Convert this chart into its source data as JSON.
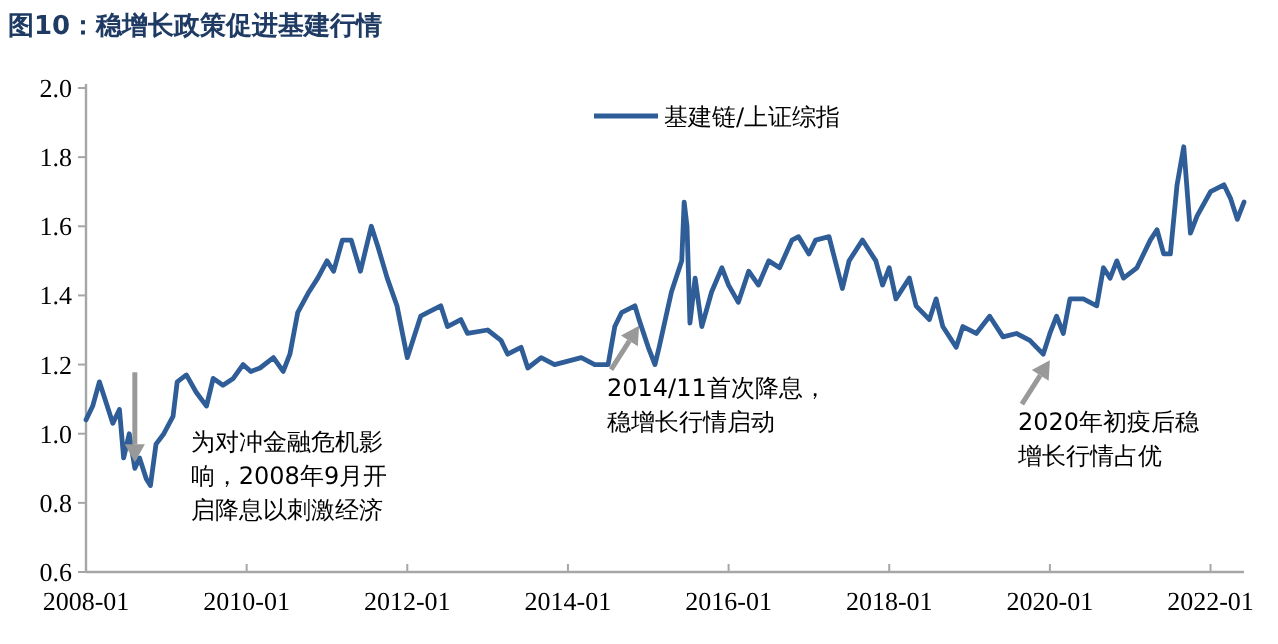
{
  "chart_data": {
    "type": "line",
    "title": "图10：稳增长政策促进基建行情",
    "legend": "top",
    "grid": false,
    "marker": "none",
    "line_style": "solid",
    "xlim": [
      "2008-01",
      "2022-06"
    ],
    "xticks": [
      "2008-01",
      "2010-01",
      "2012-01",
      "2014-01",
      "2016-01",
      "2018-01",
      "2020-01",
      "2022-01"
    ],
    "ylim": [
      0.6,
      2.0
    ],
    "yticks": [
      0.6,
      0.8,
      {
        "value": 1,
        "label": "1.0"
      },
      1.2,
      1.4,
      1.6,
      1.8,
      {
        "value": 2,
        "label": "2.0"
      }
    ],
    "annotations": [
      {
        "text": "为对冲金融危机影响，2008年9月开启降息以刺激经济",
        "x": "2008-08-10",
        "y": 0.9
      },
      {
        "text": "2014/11首次降息，稳增长行情启动",
        "x": "2014-11-20",
        "y": 1.33
      },
      {
        "text": "2020年初疫后稳增长行情占优",
        "x": "2020-01-01",
        "y": 1.23
      }
    ],
    "series": [
      {
        "name": "基建链/上证综指",
        "color": "#2f5d97",
        "x": [
          "2008-01-01",
          "2008-02-01",
          "2008-03-01",
          "2008-04-01",
          "2008-05-01",
          "2008-06-01",
          "2008-06-20",
          "2008-07-15",
          "2008-08-10",
          "2008-09-01",
          "2008-10-01",
          "2008-10-20",
          "2008-11-15",
          "2008-12-20",
          "2009-02-01",
          "2009-02-20",
          "2009-04-01",
          "2009-05-15",
          "2009-07-01",
          "2009-08-01",
          "2009-09-15",
          "2009-11-01",
          "2009-12-15",
          "2010-01-20",
          "2010-03-01",
          "2010-05-01",
          "2010-06-15",
          "2010-07-15",
          "2010-08-20",
          "2010-10-10",
          "2010-11-20",
          "2011-01-01",
          "2011-02-01",
          "2011-03-10",
          "2011-04-20",
          "2011-06-01",
          "2011-07-20",
          "2011-08-20",
          "2011-10-01",
          "2011-11-15",
          "2012-01-01",
          "2012-03-01",
          "2012-04-01",
          "2012-06-01",
          "2012-07-01",
          "2012-09-01",
          "2012-10-01",
          "2013-01-01",
          "2013-03-01",
          "2013-04-01",
          "2013-06-01",
          "2013-07-01",
          "2013-09-01",
          "2013-11-01",
          "2014-01-01",
          "2014-03-01",
          "2014-05-01",
          "2014-07-01",
          "2014-08-01",
          "2014-09-01",
          "2014-11-01",
          "2014-11-20",
          "2015-01-01",
          "2015-02-01",
          "2015-02-20",
          "2015-04-15",
          "2015-06-01",
          "2015-06-12",
          "2015-06-25",
          "2015-07-08",
          "2015-08-01",
          "2015-09-01",
          "2015-10-15",
          "2015-12-01",
          "2016-01-01",
          "2016-02-15",
          "2016-04-01",
          "2016-05-15",
          "2016-07-01",
          "2016-08-20",
          "2016-10-15",
          "2016-11-15",
          "2017-01-01",
          "2017-02-01",
          "2017-04-01",
          "2017-06-01",
          "2017-07-01",
          "2017-09-01",
          "2017-11-01",
          "2017-12-01",
          "2018-01-01",
          "2018-02-01",
          "2018-04-01",
          "2018-05-01",
          "2018-07-01",
          "2018-08-01",
          "2018-09-01",
          "2018-11-01",
          "2018-12-01",
          "2019-02-01",
          "2019-04-01",
          "2019-06-01",
          "2019-08-01",
          "2019-10-01",
          "2019-12-01",
          "2020-01-01",
          "2020-02-01",
          "2020-03-01",
          "2020-04-01",
          "2020-06-01",
          "2020-08-01",
          "2020-09-01",
          "2020-10-01",
          "2020-11-01",
          "2020-12-01",
          "2021-02-01",
          "2021-04-01",
          "2021-05-01",
          "2021-06-01",
          "2021-07-01",
          "2021-08-01",
          "2021-09-01",
          "2021-10-01",
          "2021-11-01",
          "2022-01-01",
          "2022-03-01",
          "2022-04-01",
          "2022-05-01",
          "2022-06-01"
        ],
        "values": [
          1.04,
          1.08,
          1.15,
          1.09,
          1.03,
          1.07,
          0.93,
          1.0,
          0.9,
          0.93,
          0.87,
          0.85,
          0.97,
          1.0,
          1.05,
          1.15,
          1.17,
          1.12,
          1.08,
          1.16,
          1.14,
          1.16,
          1.2,
          1.18,
          1.19,
          1.22,
          1.18,
          1.23,
          1.35,
          1.41,
          1.45,
          1.5,
          1.47,
          1.56,
          1.56,
          1.47,
          1.6,
          1.54,
          1.45,
          1.37,
          1.22,
          1.34,
          1.35,
          1.37,
          1.31,
          1.33,
          1.29,
          1.3,
          1.27,
          1.23,
          1.25,
          1.19,
          1.22,
          1.2,
          1.21,
          1.22,
          1.2,
          1.2,
          1.31,
          1.35,
          1.37,
          1.33,
          1.25,
          1.2,
          1.25,
          1.41,
          1.5,
          1.67,
          1.6,
          1.32,
          1.45,
          1.31,
          1.41,
          1.48,
          1.43,
          1.38,
          1.47,
          1.43,
          1.5,
          1.48,
          1.56,
          1.57,
          1.52,
          1.56,
          1.57,
          1.42,
          1.5,
          1.56,
          1.5,
          1.43,
          1.48,
          1.39,
          1.45,
          1.37,
          1.33,
          1.39,
          1.31,
          1.25,
          1.31,
          1.29,
          1.34,
          1.28,
          1.29,
          1.27,
          1.23,
          1.29,
          1.34,
          1.29,
          1.39,
          1.39,
          1.37,
          1.48,
          1.45,
          1.5,
          1.45,
          1.48,
          1.56,
          1.59,
          1.52,
          1.52,
          1.72,
          1.83,
          1.58,
          1.63,
          1.7,
          1.72,
          1.68,
          1.62,
          1.67
        ]
      }
    ]
  }
}
